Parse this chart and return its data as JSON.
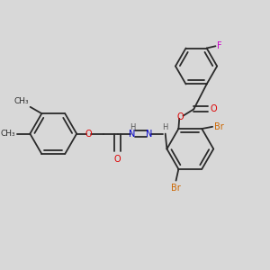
{
  "background_color": "#d8d8d8",
  "bond_color": "#2a2a2a",
  "O_color": "#dd0000",
  "N_color": "#0000cc",
  "Br_color": "#cc6600",
  "F_color": "#cc00cc",
  "H_color": "#555555",
  "lw": 1.3,
  "dbo": 0.012,
  "fs": 7.0,
  "r_large": 0.092,
  "r_small": 0.082,
  "figsize": [
    3.0,
    3.0
  ],
  "dpi": 100,
  "xlim": [
    0.0,
    1.0
  ],
  "ylim": [
    0.05,
    1.05
  ]
}
